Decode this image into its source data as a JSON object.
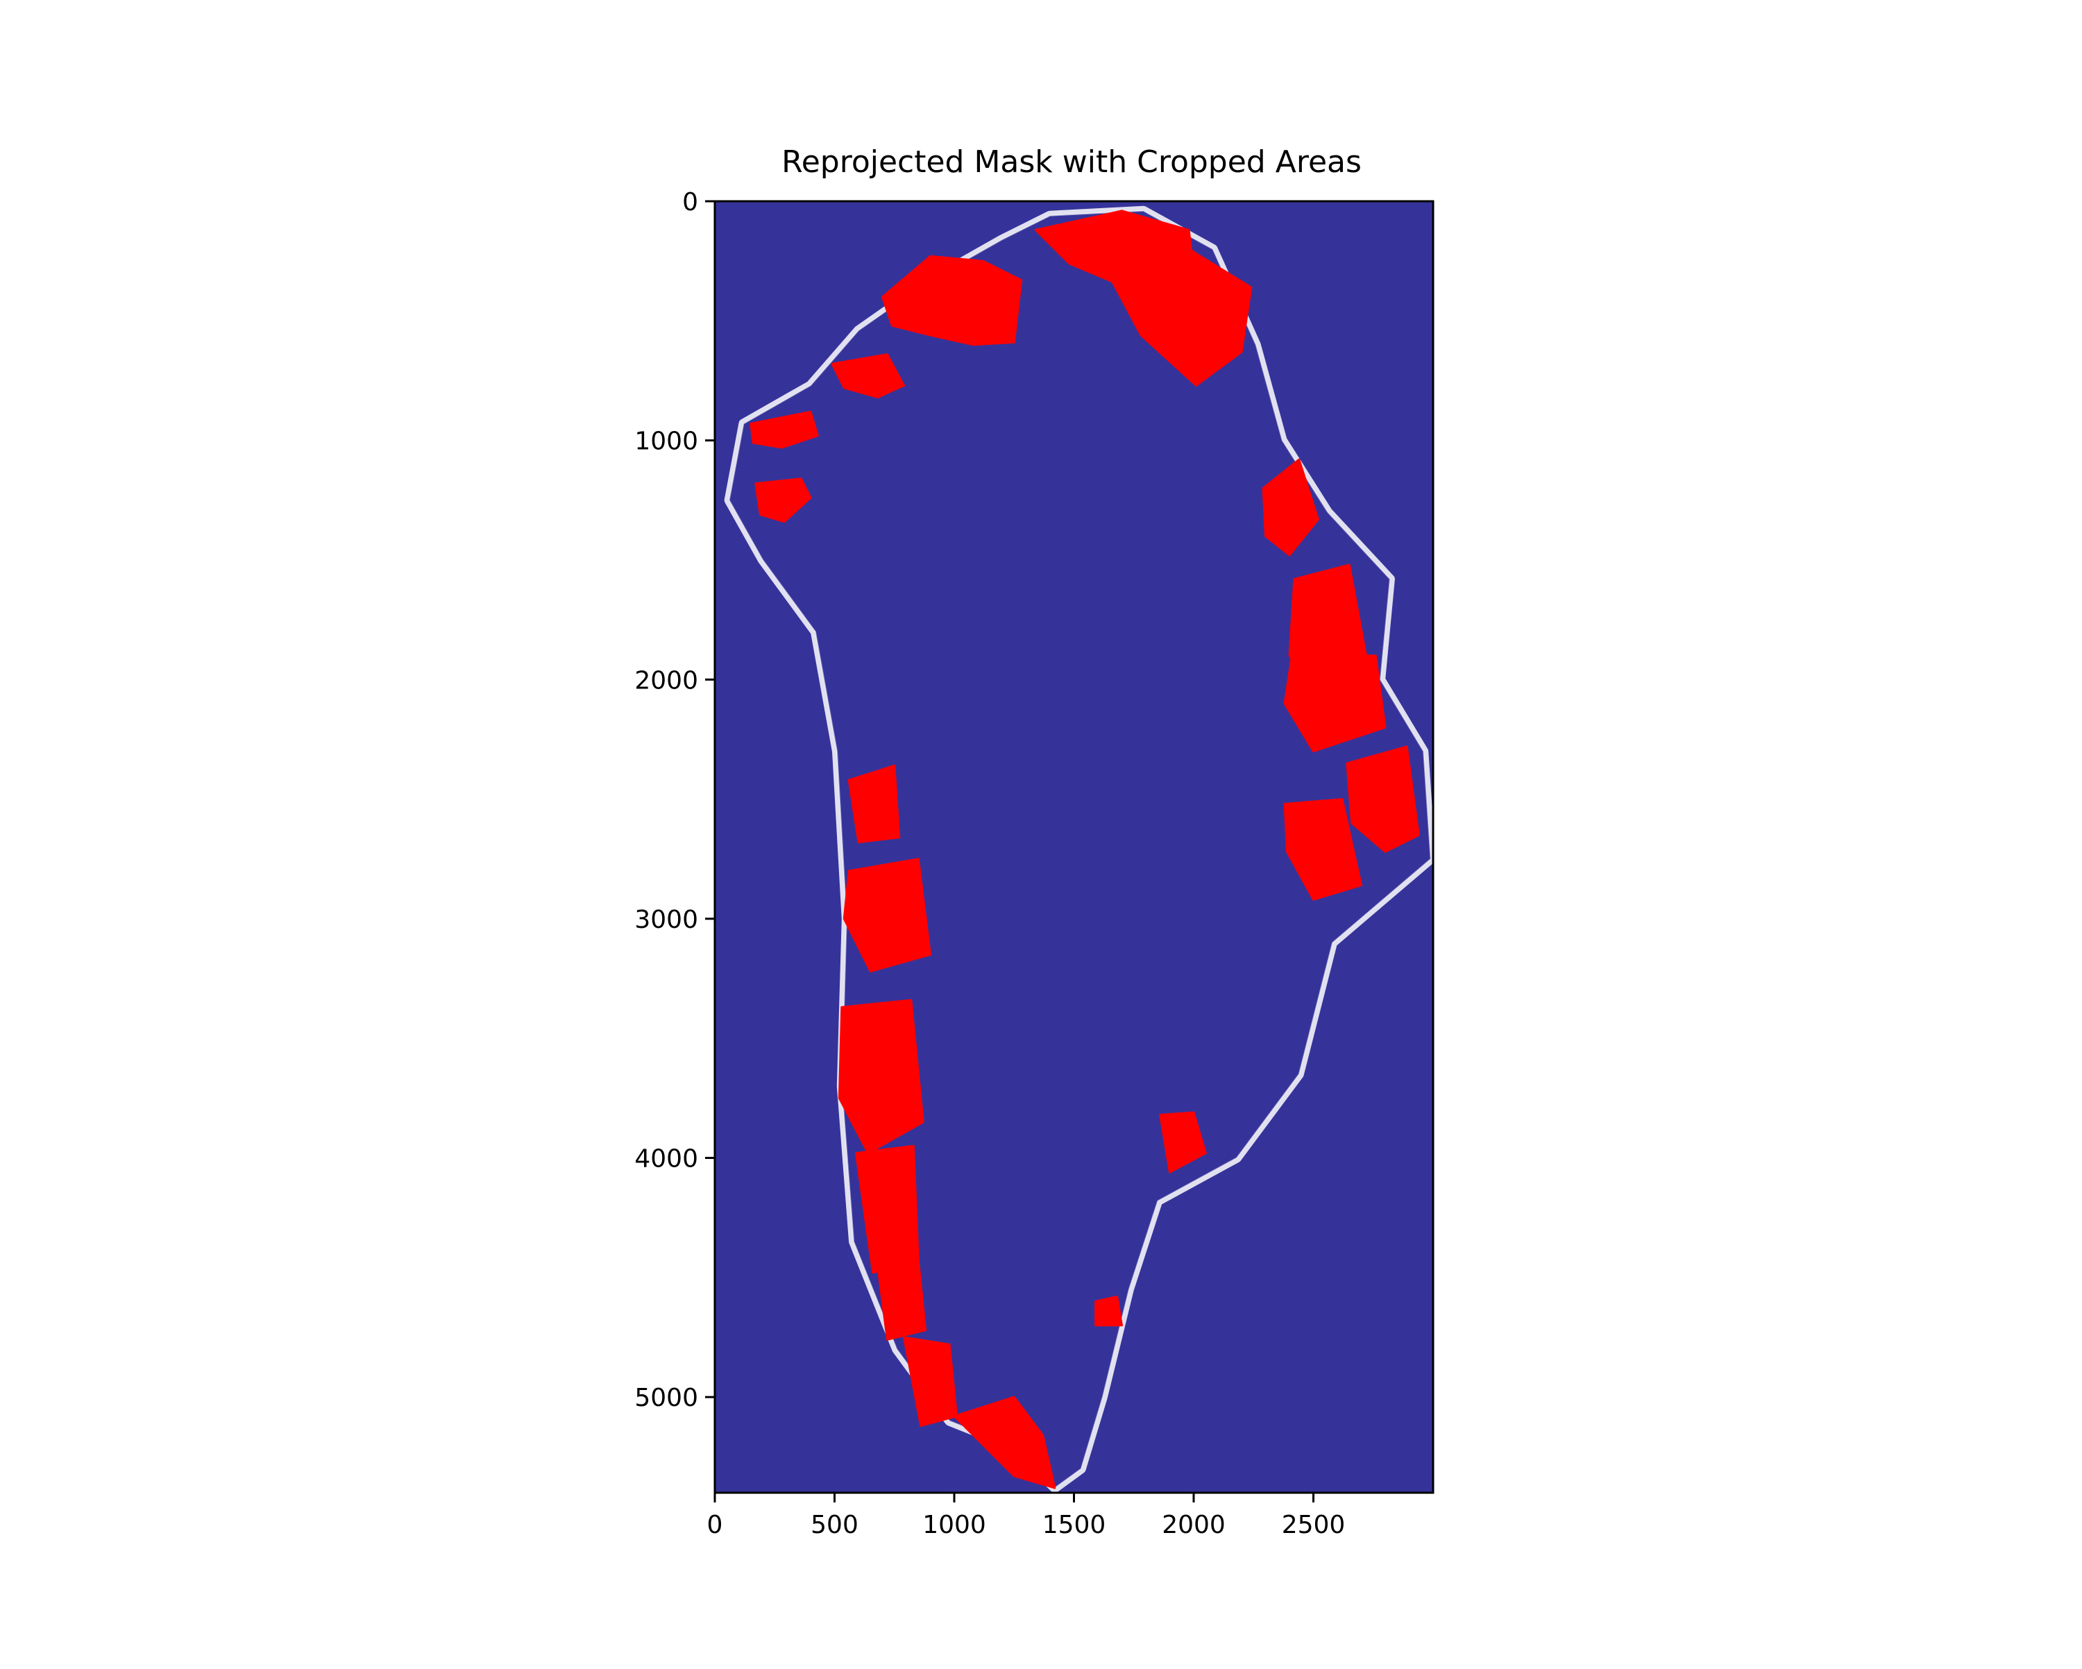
{
  "chart_data": {
    "type": "heatmap",
    "title": "Reprojected Mask with Cropped Areas",
    "xlabel": "",
    "ylabel": "",
    "xlim": [
      0,
      3000
    ],
    "ylim": [
      5400,
      0
    ],
    "x_ticks": [
      0,
      500,
      1000,
      1500,
      2000,
      2500
    ],
    "x_tick_labels": [
      "0",
      "500",
      "1000",
      "1500",
      "2000",
      "2500"
    ],
    "y_ticks": [
      0,
      1000,
      2000,
      3000,
      4000,
      5000
    ],
    "y_tick_labels": [
      "0",
      "1000",
      "2000",
      "3000",
      "4000",
      "5000"
    ],
    "grid": false,
    "legend": "none",
    "colors": {
      "background": "#35339a",
      "mask": "#ffffff",
      "cropped": "#ff0000"
    },
    "layers": {
      "mask_outline": [
        [
          1400,
          60
        ],
        [
          1790,
          40
        ],
        [
          2080,
          200
        ],
        [
          2260,
          600
        ],
        [
          2370,
          1000
        ],
        [
          2560,
          1300
        ],
        [
          2820,
          1580
        ],
        [
          2780,
          2000
        ],
        [
          2960,
          2300
        ],
        [
          2990,
          2750
        ],
        [
          2580,
          3100
        ],
        [
          2440,
          3650
        ],
        [
          2180,
          4000
        ],
        [
          1850,
          4180
        ],
        [
          1730,
          4550
        ],
        [
          1620,
          5000
        ],
        [
          1530,
          5300
        ],
        [
          1420,
          5380
        ],
        [
          1230,
          5200
        ],
        [
          980,
          5100
        ],
        [
          760,
          4800
        ],
        [
          580,
          4350
        ],
        [
          530,
          3700
        ],
        [
          550,
          3000
        ],
        [
          510,
          2300
        ],
        [
          420,
          1800
        ],
        [
          200,
          1500
        ],
        [
          60,
          1250
        ],
        [
          120,
          930
        ],
        [
          400,
          770
        ],
        [
          600,
          540
        ],
        [
          900,
          330
        ],
        [
          1200,
          160
        ]
      ],
      "cropped_areas": [
        [
          [
            700,
            400
          ],
          [
            900,
            230
          ],
          [
            1120,
            250
          ],
          [
            1280,
            330
          ],
          [
            1250,
            590
          ],
          [
            1080,
            600
          ],
          [
            900,
            560
          ],
          [
            740,
            520
          ]
        ],
        [
          [
            1340,
            120
          ],
          [
            1700,
            40
          ],
          [
            1980,
            120
          ],
          [
            2000,
            290
          ],
          [
            1740,
            370
          ],
          [
            1480,
            260
          ]
        ],
        [
          [
            1620,
            260
          ],
          [
            1980,
            200
          ],
          [
            2240,
            360
          ],
          [
            2200,
            630
          ],
          [
            2010,
            770
          ],
          [
            1780,
            560
          ]
        ],
        [
          [
            490,
            680
          ],
          [
            720,
            640
          ],
          [
            790,
            770
          ],
          [
            680,
            820
          ],
          [
            540,
            780
          ]
        ],
        [
          [
            150,
            930
          ],
          [
            400,
            880
          ],
          [
            430,
            980
          ],
          [
            280,
            1030
          ],
          [
            160,
            1010
          ]
        ],
        [
          [
            170,
            1180
          ],
          [
            360,
            1160
          ],
          [
            400,
            1240
          ],
          [
            290,
            1340
          ],
          [
            190,
            1310
          ]
        ],
        [
          [
            2290,
            1200
          ],
          [
            2440,
            1080
          ],
          [
            2520,
            1330
          ],
          [
            2400,
            1480
          ],
          [
            2300,
            1400
          ]
        ],
        [
          [
            2420,
            1580
          ],
          [
            2650,
            1520
          ],
          [
            2720,
            1900
          ],
          [
            2530,
            2050
          ],
          [
            2400,
            1900
          ]
        ],
        [
          [
            2410,
            1900
          ],
          [
            2760,
            1900
          ],
          [
            2800,
            2200
          ],
          [
            2500,
            2300
          ],
          [
            2380,
            2100
          ]
        ],
        [
          [
            2640,
            2350
          ],
          [
            2890,
            2280
          ],
          [
            2940,
            2650
          ],
          [
            2800,
            2720
          ],
          [
            2660,
            2600
          ]
        ],
        [
          [
            2380,
            2520
          ],
          [
            2620,
            2500
          ],
          [
            2700,
            2860
          ],
          [
            2500,
            2920
          ],
          [
            2390,
            2720
          ]
        ],
        [
          [
            560,
            2420
          ],
          [
            750,
            2360
          ],
          [
            770,
            2660
          ],
          [
            600,
            2680
          ]
        ],
        [
          [
            560,
            2800
          ],
          [
            850,
            2750
          ],
          [
            900,
            3150
          ],
          [
            650,
            3220
          ],
          [
            540,
            3000
          ]
        ],
        [
          [
            530,
            3370
          ],
          [
            820,
            3340
          ],
          [
            870,
            3850
          ],
          [
            640,
            3980
          ],
          [
            520,
            3750
          ]
        ],
        [
          [
            590,
            3980
          ],
          [
            830,
            3950
          ],
          [
            850,
            4430
          ],
          [
            660,
            4480
          ]
        ],
        [
          [
            680,
            4450
          ],
          [
            850,
            4430
          ],
          [
            880,
            4720
          ],
          [
            720,
            4760
          ]
        ],
        [
          [
            790,
            4750
          ],
          [
            980,
            4780
          ],
          [
            1010,
            5080
          ],
          [
            860,
            5120
          ]
        ],
        [
          [
            1000,
            5080
          ],
          [
            1250,
            5000
          ],
          [
            1370,
            5160
          ],
          [
            1420,
            5380
          ],
          [
            1250,
            5330
          ]
        ],
        [
          [
            1860,
            3820
          ],
          [
            2000,
            3810
          ],
          [
            2050,
            3980
          ],
          [
            1900,
            4060
          ]
        ],
        [
          [
            1590,
            4600
          ],
          [
            1680,
            4580
          ],
          [
            1700,
            4700
          ],
          [
            1590,
            4700
          ]
        ]
      ]
    }
  }
}
